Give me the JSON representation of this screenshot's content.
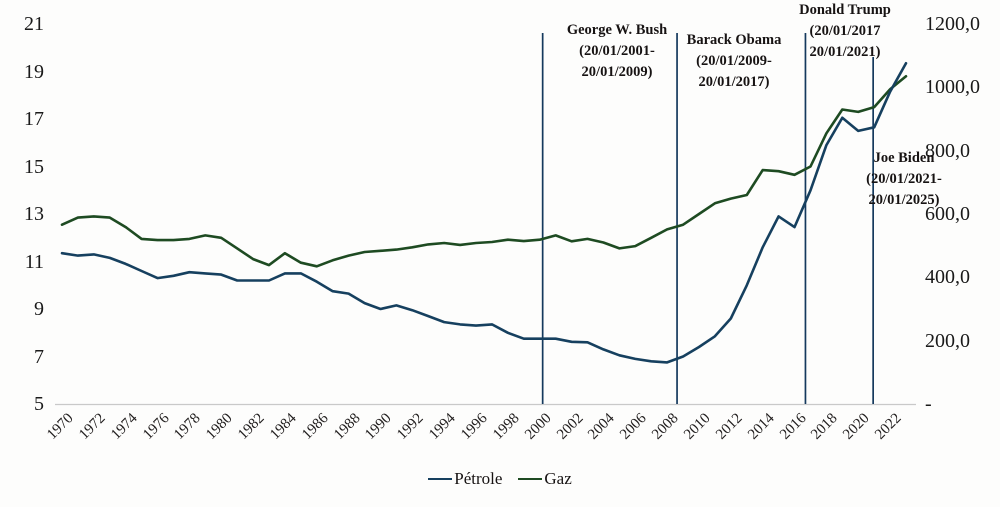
{
  "chart_data": {
    "type": "line",
    "title": "",
    "grid": false,
    "legend_position": "bottom-center",
    "x": [
      1970,
      1971,
      1972,
      1973,
      1974,
      1975,
      1976,
      1977,
      1978,
      1979,
      1980,
      1981,
      1982,
      1983,
      1984,
      1985,
      1986,
      1987,
      1988,
      1989,
      1990,
      1991,
      1992,
      1993,
      1994,
      1995,
      1996,
      1997,
      1998,
      1999,
      2000,
      2001,
      2002,
      2003,
      2004,
      2005,
      2006,
      2007,
      2008,
      2009,
      2010,
      2011,
      2012,
      2013,
      2014,
      2015,
      2016,
      2017,
      2018,
      2019,
      2020,
      2021,
      2022,
      2023
    ],
    "series": [
      {
        "name": "Pétrole",
        "color": "#16405f",
        "values": [
          11.35,
          11.25,
          11.3,
          11.15,
          10.9,
          10.6,
          10.3,
          10.4,
          10.55,
          10.5,
          10.45,
          10.2,
          10.2,
          10.2,
          10.5,
          10.5,
          10.15,
          9.75,
          9.65,
          9.25,
          9.0,
          9.15,
          8.95,
          8.7,
          8.45,
          8.35,
          8.3,
          8.35,
          8.0,
          7.75,
          7.75,
          7.75,
          7.62,
          7.6,
          7.3,
          7.05,
          6.9,
          6.8,
          6.75,
          7.0,
          7.4,
          7.85,
          8.6,
          10.0,
          11.6,
          12.9,
          12.45,
          14.0,
          15.9,
          17.05,
          16.5,
          16.65,
          18.15,
          19.35
        ]
      },
      {
        "name": "Gaz",
        "color": "#1e4b22",
        "values": [
          12.55,
          12.85,
          12.9,
          12.85,
          12.45,
          11.95,
          11.9,
          11.9,
          11.95,
          12.1,
          12.0,
          11.55,
          11.1,
          10.85,
          11.35,
          10.95,
          10.8,
          11.05,
          11.25,
          11.4,
          11.45,
          11.5,
          11.6,
          11.72,
          11.78,
          11.7,
          11.78,
          11.82,
          11.92,
          11.86,
          11.92,
          12.1,
          11.85,
          11.95,
          11.8,
          11.55,
          11.65,
          12.0,
          12.35,
          12.55,
          13.0,
          13.45,
          13.65,
          13.8,
          14.85,
          14.8,
          14.65,
          15.0,
          16.4,
          17.4,
          17.3,
          17.5,
          18.25,
          18.8
        ]
      }
    ],
    "left_axis": {
      "min": 5,
      "max": 21,
      "ticks": [
        "21",
        "19",
        "17",
        "15",
        "13",
        "11",
        "9",
        "7",
        "5"
      ],
      "tick_values": [
        21,
        19,
        17,
        15,
        13,
        11,
        9,
        7,
        5
      ]
    },
    "right_axis": {
      "min": 0,
      "max": 1200,
      "ticks": [
        "1200,0",
        "1000,0",
        "800,0",
        "600,0",
        "400,0",
        "200,0",
        "-"
      ]
    },
    "x_axis": {
      "tick_years": [
        1970,
        1972,
        1974,
        1976,
        1978,
        1980,
        1982,
        1984,
        1986,
        1988,
        1990,
        1992,
        1994,
        1996,
        1998,
        2000,
        2002,
        2004,
        2006,
        2008,
        2010,
        2012,
        2014,
        2016,
        2018,
        2020,
        2022
      ]
    },
    "annotations": [
      {
        "id": "bush",
        "year": 2001,
        "lines": [
          "George W. Bush",
          "(20/01/2001-",
          "20/01/2009)"
        ]
      },
      {
        "id": "obama",
        "year": 2009,
        "lines": [
          "Barack Obama",
          "(20/01/2009-",
          "20/01/2017)"
        ]
      },
      {
        "id": "trump",
        "year": 2017,
        "lines": [
          "Donald Trump",
          "(20/01/2017",
          "20/01/2021)"
        ]
      },
      {
        "id": "biden",
        "year": 2021,
        "lines": [
          "Joe Biden",
          "(20/01/2021-",
          "20/01/2025)"
        ]
      }
    ],
    "marker_line_color": "#15395d",
    "axis_line_color": "#c9c9c9",
    "legend": [
      "Pétrole",
      "Gaz"
    ]
  }
}
